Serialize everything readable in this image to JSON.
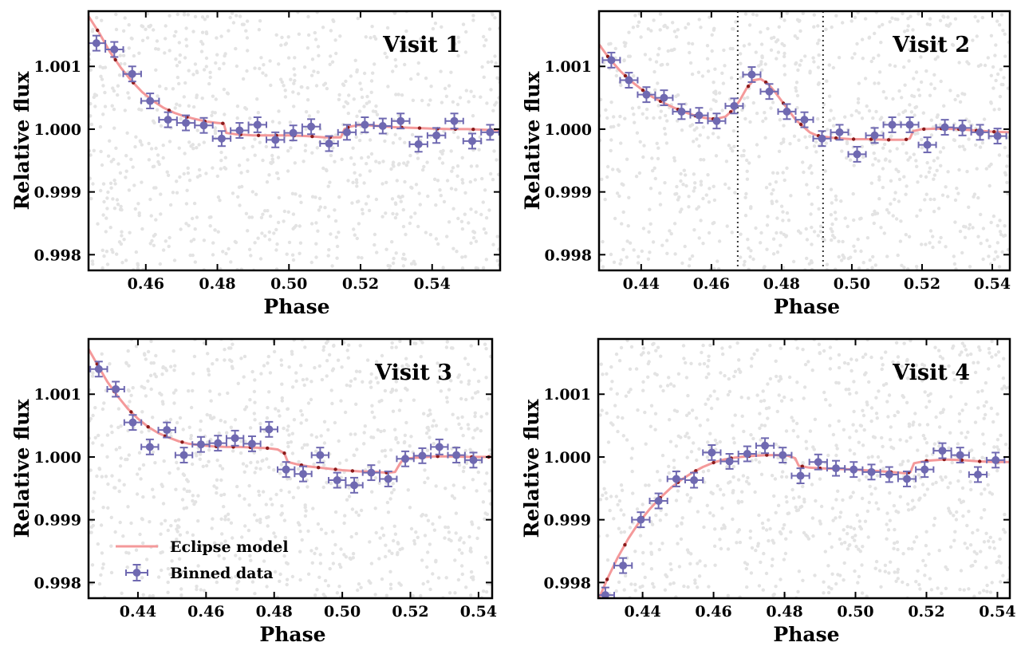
{
  "figure": {
    "legend": {
      "model_label": "Eclipse model",
      "data_label": "Binned data",
      "panel": 3,
      "placement": "lower-left"
    }
  },
  "chart_data": [
    {
      "type": "scatter",
      "title": "Visit 1",
      "xlabel": "Phase",
      "ylabel": "Relative flux",
      "xlim": [
        0.444,
        0.559
      ],
      "ylim": [
        0.99775,
        1.00188
      ],
      "xticks": [
        0.46,
        0.48,
        0.5,
        0.52,
        0.54
      ],
      "xtick_labels": [
        "0.46",
        "0.48",
        "0.50",
        "0.52",
        "0.54"
      ],
      "yticks": [
        0.998,
        0.999,
        1.0,
        1.001
      ],
      "ytick_labels": [
        "0.998",
        "0.999",
        "1.000",
        "1.001"
      ],
      "vlines": [],
      "model": {
        "x": [
          0.444,
          0.447,
          0.45,
          0.453,
          0.456,
          0.459,
          0.462,
          0.465,
          0.468,
          0.471,
          0.474,
          0.477,
          0.48,
          0.4818,
          0.4825,
          0.485,
          0.49,
          0.495,
          0.5,
          0.505,
          0.51,
          0.5145,
          0.5155,
          0.517,
          0.52,
          0.525,
          0.53,
          0.535,
          0.54,
          0.545,
          0.55,
          0.555,
          0.559
        ],
        "y": [
          1.0018,
          1.00153,
          1.00123,
          1.00098,
          1.00077,
          1.00059,
          1.00045,
          1.00034,
          1.00026,
          1.0002,
          1.00016,
          1.00012,
          1.0001,
          1.00009,
          0.99994,
          0.99992,
          0.9999,
          0.9999,
          0.9999,
          0.99989,
          0.99987,
          0.99987,
          1.0,
          1.00004,
          1.00007,
          1.00005,
          1.00003,
          1.00002,
          1.00001,
          1.0,
          1.0,
          0.99999,
          0.99998
        ]
      },
      "binned": {
        "x": [
          0.4462,
          0.4512,
          0.4562,
          0.4612,
          0.4662,
          0.4712,
          0.4762,
          0.4812,
          0.4862,
          0.4912,
          0.4962,
          0.5012,
          0.5062,
          0.5112,
          0.5162,
          0.5212,
          0.5262,
          0.5312,
          0.5362,
          0.5412,
          0.5462,
          0.5512,
          0.5562
        ],
        "y": [
          1.00137,
          1.00127,
          1.00088,
          1.00045,
          1.00015,
          1.0001,
          1.00006,
          0.99985,
          0.99998,
          1.00007,
          0.99983,
          0.99994,
          1.00004,
          0.99977,
          0.99995,
          1.00007,
          1.00005,
          1.00013,
          0.99976,
          0.9999,
          1.00013,
          0.99981,
          0.99995
        ],
        "xerr": 0.0025,
        "yerr": 0.00012
      }
    },
    {
      "type": "scatter",
      "title": "Visit 2",
      "xlabel": "Phase",
      "ylabel": "Relative flux",
      "xlim": [
        0.428,
        0.545
      ],
      "ylim": [
        0.99775,
        1.00188
      ],
      "xticks": [
        0.44,
        0.46,
        0.48,
        0.5,
        0.52,
        0.54
      ],
      "xtick_labels": [
        "0.44",
        "0.46",
        "0.48",
        "0.50",
        "0.52",
        "0.54"
      ],
      "yticks": [
        0.998,
        0.999,
        1.0,
        1.001
      ],
      "ytick_labels": [
        "0.998",
        "0.999",
        "1.000",
        "1.001"
      ],
      "vlines": [
        0.4675,
        0.4918
      ],
      "model": {
        "x": [
          0.428,
          0.431,
          0.434,
          0.437,
          0.44,
          0.443,
          0.446,
          0.449,
          0.452,
          0.455,
          0.458,
          0.461,
          0.464,
          0.466,
          0.468,
          0.47,
          0.472,
          0.474,
          0.476,
          0.478,
          0.48,
          0.482,
          0.484,
          0.486,
          0.488,
          0.49,
          0.492,
          0.495,
          0.5,
          0.505,
          0.51,
          0.515,
          0.5165,
          0.5175,
          0.52,
          0.525,
          0.53,
          0.535,
          0.54,
          0.545
        ],
        "y": [
          1.00135,
          1.00112,
          1.00093,
          1.00077,
          1.00064,
          1.00052,
          1.00043,
          1.00035,
          1.00028,
          1.00022,
          1.00018,
          1.00016,
          1.0002,
          1.0003,
          1.00045,
          1.00065,
          1.00078,
          1.0008,
          1.00073,
          1.0006,
          1.00045,
          1.0003,
          1.00015,
          1.00005,
          0.99995,
          0.9999,
          0.99988,
          0.99986,
          0.99984,
          0.99984,
          0.99983,
          0.99983,
          0.99985,
          0.99997,
          1.0,
          1.00001,
          1.0,
          0.99998,
          0.99996,
          0.99995
        ]
      },
      "binned": {
        "x": [
          0.4315,
          0.4365,
          0.4415,
          0.4465,
          0.4515,
          0.4565,
          0.4615,
          0.4665,
          0.4715,
          0.4765,
          0.4815,
          0.4865,
          0.4915,
          0.4965,
          0.5015,
          0.5065,
          0.5115,
          0.5165,
          0.5215,
          0.5265,
          0.5315,
          0.5365,
          0.5415
        ],
        "y": [
          1.0011,
          1.00078,
          1.00055,
          1.0005,
          1.00028,
          1.00022,
          1.00013,
          1.00037,
          1.00087,
          1.0006,
          1.00028,
          1.00015,
          0.99985,
          0.99995,
          0.9996,
          0.9999,
          1.00007,
          1.00007,
          0.99975,
          1.00003,
          1.00002,
          0.99995,
          0.99989
        ],
        "xerr": 0.0025,
        "yerr": 0.00012
      }
    },
    {
      "type": "scatter",
      "title": "Visit 3",
      "xlabel": "Phase",
      "ylabel": "Relative flux",
      "xlim": [
        0.4255,
        0.544
      ],
      "ylim": [
        0.99775,
        1.00188
      ],
      "xticks": [
        0.44,
        0.46,
        0.48,
        0.5,
        0.52,
        0.54
      ],
      "xtick_labels": [
        "0.44",
        "0.46",
        "0.48",
        "0.50",
        "0.52",
        "0.54"
      ],
      "yticks": [
        0.998,
        0.999,
        1.0,
        1.001
      ],
      "ytick_labels": [
        "0.998",
        "0.999",
        "1.000",
        "1.001"
      ],
      "vlines": [],
      "model": {
        "x": [
          0.4255,
          0.428,
          0.431,
          0.434,
          0.437,
          0.44,
          0.443,
          0.446,
          0.449,
          0.452,
          0.455,
          0.458,
          0.462,
          0.466,
          0.47,
          0.474,
          0.478,
          0.481,
          0.483,
          0.484,
          0.487,
          0.49,
          0.495,
          0.5,
          0.505,
          0.51,
          0.513,
          0.5155,
          0.517,
          0.518,
          0.522,
          0.527,
          0.532,
          0.537,
          0.544
        ],
        "y": [
          1.00172,
          1.00148,
          1.0012,
          1.00097,
          1.00077,
          1.00061,
          1.00048,
          1.00038,
          1.00031,
          1.00025,
          1.00021,
          1.00019,
          1.00017,
          1.00016,
          1.00016,
          1.00015,
          1.00014,
          1.00012,
          1.00006,
          0.99992,
          0.99988,
          0.99985,
          0.99982,
          0.99979,
          0.99977,
          0.99976,
          0.99975,
          0.99976,
          0.9999,
          0.99997,
          0.99999,
          1.00001,
          1.00001,
          1.0,
          1.0
        ]
      },
      "binned": {
        "x": [
          0.4285,
          0.4335,
          0.4385,
          0.4435,
          0.4485,
          0.4535,
          0.4585,
          0.4635,
          0.4685,
          0.4735,
          0.4785,
          0.4835,
          0.4885,
          0.4935,
          0.4985,
          0.5035,
          0.5085,
          0.5135,
          0.5185,
          0.5235,
          0.5285,
          0.5335,
          0.5385
        ],
        "y": [
          1.0014,
          1.00108,
          1.00055,
          1.00016,
          1.00043,
          1.00003,
          1.0002,
          1.00022,
          1.0003,
          1.00021,
          1.00044,
          0.9998,
          0.99973,
          1.00003,
          0.99963,
          0.99955,
          0.99975,
          0.99965,
          0.99997,
          1.00002,
          1.00016,
          1.00003,
          0.99995
        ],
        "xerr": 0.0025,
        "yerr": 0.00012
      }
    },
    {
      "type": "scatter",
      "title": "Visit 4",
      "xlabel": "Phase",
      "ylabel": "Relative flux",
      "xlim": [
        0.4275,
        0.5435
      ],
      "ylim": [
        0.99775,
        1.00188
      ],
      "xticks": [
        0.44,
        0.46,
        0.48,
        0.5,
        0.52,
        0.54
      ],
      "xtick_labels": [
        "0.44",
        "0.46",
        "0.48",
        "0.50",
        "0.52",
        "0.54"
      ],
      "yticks": [
        0.998,
        0.999,
        1.0,
        1.001
      ],
      "ytick_labels": [
        "0.998",
        "0.999",
        "1.000",
        "1.001"
      ],
      "vlines": [],
      "model": {
        "x": [
          0.4275,
          0.43,
          0.433,
          0.436,
          0.439,
          0.442,
          0.445,
          0.448,
          0.451,
          0.454,
          0.457,
          0.46,
          0.463,
          0.466,
          0.469,
          0.472,
          0.475,
          0.478,
          0.481,
          0.483,
          0.484,
          0.487,
          0.49,
          0.495,
          0.5,
          0.505,
          0.51,
          0.514,
          0.5155,
          0.5165,
          0.52,
          0.525,
          0.53,
          0.535,
          0.54,
          0.5435
        ],
        "y": [
          0.99772,
          0.99805,
          0.9984,
          0.9987,
          0.99896,
          0.99917,
          0.99935,
          0.99951,
          0.99964,
          0.99975,
          0.99984,
          0.99991,
          0.99996,
          0.99999,
          1.00001,
          1.00002,
          1.00003,
          1.00003,
          1.00002,
          0.99998,
          0.99986,
          0.99983,
          0.99982,
          0.99981,
          0.9998,
          0.99978,
          0.99976,
          0.99974,
          0.99976,
          0.9999,
          0.99994,
          0.99996,
          0.99995,
          0.99993,
          0.99992,
          0.99992
        ]
      },
      "binned": {
        "x": [
          0.4295,
          0.4345,
          0.4395,
          0.4445,
          0.4495,
          0.4545,
          0.4595,
          0.4645,
          0.4695,
          0.4745,
          0.4795,
          0.4845,
          0.4895,
          0.4945,
          0.4995,
          0.5045,
          0.5095,
          0.5145,
          0.5195,
          0.5245,
          0.5295,
          0.5345,
          0.5395
        ],
        "y": [
          0.9978,
          0.99827,
          0.999,
          0.9993,
          0.99965,
          0.99963,
          1.00007,
          0.99993,
          1.00005,
          1.00018,
          1.00003,
          0.9997,
          0.99992,
          0.99982,
          0.9998,
          0.99976,
          0.99972,
          0.99965,
          0.9998,
          1.0001,
          1.00003,
          0.99972,
          0.99995
        ],
        "xerr": 0.0025,
        "yerr": 0.00012
      }
    }
  ],
  "colors": {
    "model": "#f4999a",
    "model_points": "#8b1a1a",
    "binned": "#6f69b1",
    "raw": "#e3e3e3",
    "vline": "#333333",
    "axis": "#000000"
  }
}
